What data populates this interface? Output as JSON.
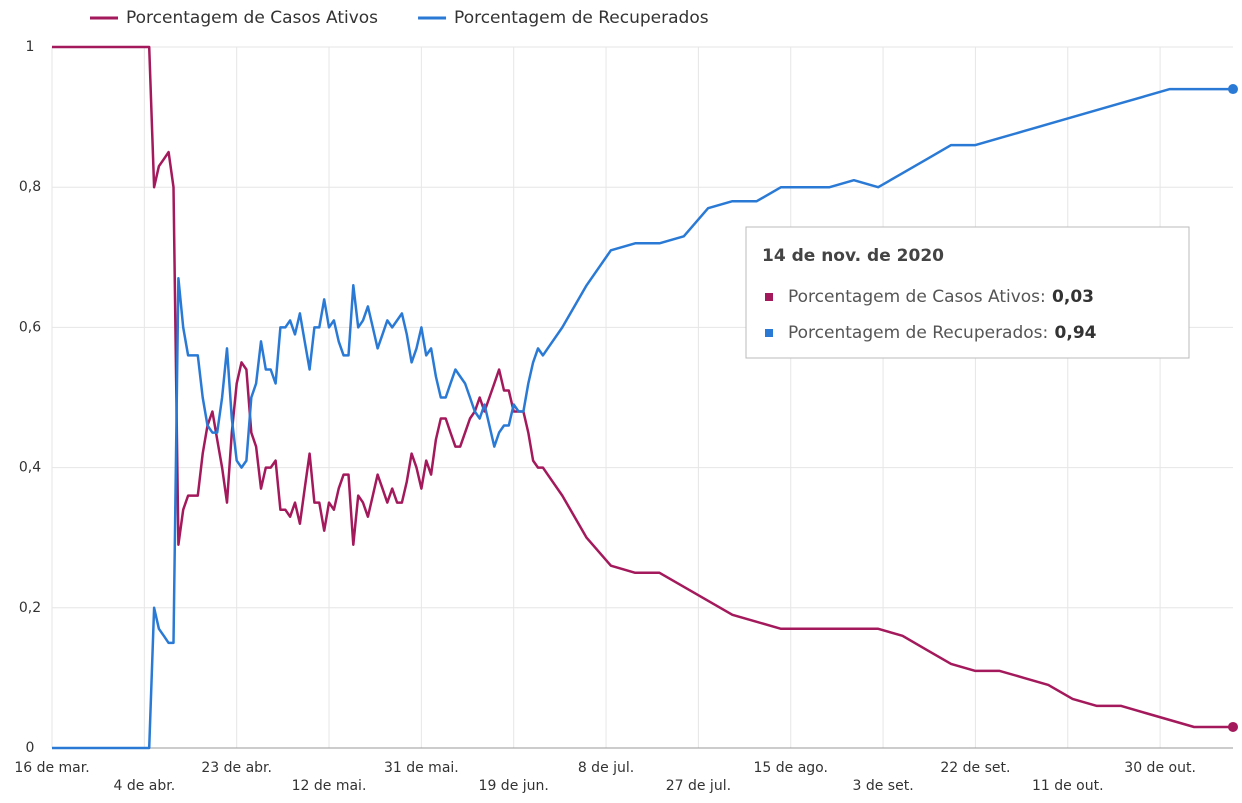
{
  "chart_data": {
    "type": "line",
    "x": [
      0,
      20,
      21,
      22,
      23,
      24,
      25,
      26,
      27,
      28,
      29,
      30,
      31,
      32,
      33,
      34,
      35,
      36,
      37,
      38,
      39,
      40,
      41,
      42,
      43,
      44,
      45,
      46,
      47,
      48,
      49,
      50,
      51,
      52,
      53,
      54,
      55,
      56,
      57,
      58,
      59,
      60,
      61,
      62,
      63,
      64,
      65,
      66,
      67,
      68,
      69,
      70,
      71,
      72,
      73,
      74,
      75,
      76,
      77,
      78,
      79,
      80,
      81,
      82,
      83,
      84,
      85,
      86,
      87,
      88,
      89,
      90,
      91,
      92,
      93,
      94,
      95,
      96,
      97,
      98,
      99,
      100,
      101,
      102,
      105,
      110,
      115,
      120,
      125,
      130,
      135,
      140,
      145,
      150,
      155,
      160,
      165,
      170,
      175,
      180,
      185,
      190,
      195,
      200,
      205,
      210,
      215,
      220,
      225,
      230,
      235,
      240,
      243
    ],
    "series": [
      {
        "name": "Porcentagem de Casos Ativos",
        "color": "#a3195b",
        "values": [
          1,
          1,
          0.8,
          0.83,
          0.84,
          0.85,
          0.8,
          0.29,
          0.34,
          0.36,
          0.36,
          0.36,
          0.42,
          0.46,
          0.48,
          0.44,
          0.4,
          0.35,
          0.45,
          0.52,
          0.55,
          0.54,
          0.45,
          0.43,
          0.37,
          0.4,
          0.4,
          0.41,
          0.34,
          0.34,
          0.33,
          0.35,
          0.32,
          0.37,
          0.42,
          0.35,
          0.35,
          0.31,
          0.35,
          0.34,
          0.37,
          0.39,
          0.39,
          0.29,
          0.36,
          0.35,
          0.33,
          0.36,
          0.39,
          0.37,
          0.35,
          0.37,
          0.35,
          0.35,
          0.38,
          0.42,
          0.4,
          0.37,
          0.41,
          0.39,
          0.44,
          0.47,
          0.47,
          0.45,
          0.43,
          0.43,
          0.45,
          0.47,
          0.48,
          0.5,
          0.48,
          0.5,
          0.52,
          0.54,
          0.51,
          0.51,
          0.48,
          0.48,
          0.48,
          0.45,
          0.41,
          0.4,
          0.4,
          0.39,
          0.36,
          0.3,
          0.26,
          0.25,
          0.25,
          0.23,
          0.21,
          0.19,
          0.18,
          0.17,
          0.17,
          0.17,
          0.17,
          0.17,
          0.16,
          0.14,
          0.12,
          0.11,
          0.11,
          0.1,
          0.09,
          0.07,
          0.06,
          0.06,
          0.05,
          0.04,
          0.03,
          0.03,
          0.03
        ]
      },
      {
        "name": "Porcentagem de Recuperados",
        "color": "#2a7ad5",
        "values": [
          0,
          0,
          0.2,
          0.17,
          0.16,
          0.15,
          0.15,
          0.67,
          0.6,
          0.56,
          0.56,
          0.56,
          0.5,
          0.46,
          0.45,
          0.45,
          0.5,
          0.57,
          0.47,
          0.41,
          0.4,
          0.41,
          0.5,
          0.52,
          0.58,
          0.54,
          0.54,
          0.52,
          0.6,
          0.6,
          0.61,
          0.59,
          0.62,
          0.58,
          0.54,
          0.6,
          0.6,
          0.64,
          0.6,
          0.61,
          0.58,
          0.56,
          0.56,
          0.66,
          0.6,
          0.61,
          0.63,
          0.6,
          0.57,
          0.59,
          0.61,
          0.6,
          0.61,
          0.62,
          0.59,
          0.55,
          0.57,
          0.6,
          0.56,
          0.57,
          0.53,
          0.5,
          0.5,
          0.52,
          0.54,
          0.53,
          0.52,
          0.5,
          0.48,
          0.47,
          0.49,
          0.46,
          0.43,
          0.45,
          0.46,
          0.46,
          0.49,
          0.48,
          0.48,
          0.52,
          0.55,
          0.57,
          0.56,
          0.57,
          0.6,
          0.66,
          0.71,
          0.72,
          0.72,
          0.73,
          0.77,
          0.78,
          0.78,
          0.8,
          0.8,
          0.8,
          0.81,
          0.8,
          0.82,
          0.84,
          0.86,
          0.86,
          0.87,
          0.88,
          0.89,
          0.9,
          0.91,
          0.92,
          0.93,
          0.94,
          0.94,
          0.94,
          0.94
        ]
      }
    ],
    "xlim": [
      0,
      243
    ],
    "xticks": [
      {
        "value": 0,
        "label": "16 de mar."
      },
      {
        "value": 19,
        "label": "4 de abr."
      },
      {
        "value": 38,
        "label": "23 de abr."
      },
      {
        "value": 57,
        "label": "12 de mai."
      },
      {
        "value": 76,
        "label": "31 de mai."
      },
      {
        "value": 95,
        "label": "19 de jun."
      },
      {
        "value": 114,
        "label": "8 de jul."
      },
      {
        "value": 133,
        "label": "27 de jul."
      },
      {
        "value": 152,
        "label": "15 de ago."
      },
      {
        "value": 171,
        "label": "3 de set."
      },
      {
        "value": 190,
        "label": "22 de set."
      },
      {
        "value": 209,
        "label": "11 de out."
      },
      {
        "value": 228,
        "label": "30 de out."
      }
    ],
    "ylim": [
      0,
      1
    ],
    "yticks": [
      0,
      {
        "value": 0.2,
        "label": "0,2"
      },
      {
        "value": 0.4,
        "label": "0,4"
      },
      {
        "value": 0.6,
        "label": "0,6"
      },
      {
        "value": 0.8,
        "label": "0,8"
      },
      1
    ],
    "grid": true,
    "legend": "top-left",
    "tooltip": {
      "title": "14 de nov. de 2020",
      "value_labels": [
        "0,03",
        "0,94"
      ]
    }
  }
}
